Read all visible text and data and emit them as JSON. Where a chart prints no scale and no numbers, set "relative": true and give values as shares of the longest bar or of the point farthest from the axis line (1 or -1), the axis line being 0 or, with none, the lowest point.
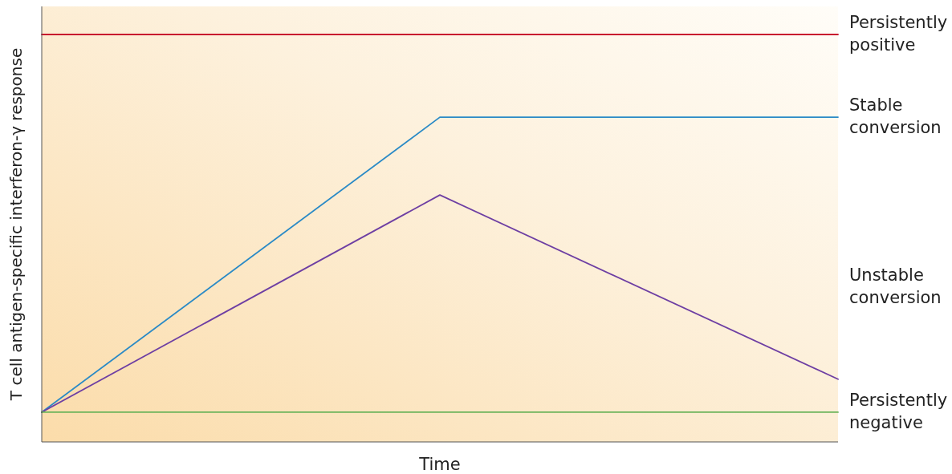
{
  "chart_data": {
    "type": "line",
    "relative": true,
    "xlabel": "Time",
    "ylabel": "T cell antigen-specific interferon-γ response",
    "categories": [
      null,
      null,
      null
    ],
    "series": [
      {
        "name": "Persistently positive",
        "color": "#c8102e",
        "values": [
          1,
          1,
          1
        ]
      },
      {
        "name": "Stable conversion",
        "color": "#2a8ac6",
        "values": [
          0.073,
          0.797,
          0.797
        ]
      },
      {
        "name": "Unstable conversion",
        "color": "#6e3fa3",
        "values": [
          0.073,
          0.606,
          0.154
        ]
      },
      {
        "name": "Persistently negative",
        "color": "#6bb35a",
        "values": [
          0.073,
          0.073,
          0.073
        ]
      }
    ]
  }
}
